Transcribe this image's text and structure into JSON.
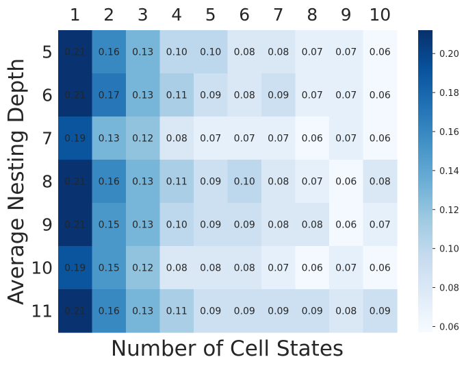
{
  "chart_data": {
    "type": "heatmap",
    "title": "",
    "xlabel": "Number of Cell States",
    "ylabel": "Average Nesting Depth",
    "x_categories": [
      "1",
      "2",
      "3",
      "4",
      "5",
      "6",
      "7",
      "8",
      "9",
      "10"
    ],
    "y_categories": [
      "5",
      "6",
      "7",
      "8",
      "9",
      "10",
      "11"
    ],
    "values": [
      [
        0.21,
        0.16,
        0.13,
        0.1,
        0.1,
        0.08,
        0.08,
        0.07,
        0.07,
        0.06
      ],
      [
        0.21,
        0.17,
        0.13,
        0.11,
        0.09,
        0.08,
        0.09,
        0.07,
        0.07,
        0.06
      ],
      [
        0.19,
        0.13,
        0.12,
        0.08,
        0.07,
        0.07,
        0.07,
        0.06,
        0.07,
        0.06
      ],
      [
        0.21,
        0.16,
        0.13,
        0.11,
        0.09,
        0.1,
        0.08,
        0.07,
        0.06,
        0.08
      ],
      [
        0.21,
        0.15,
        0.13,
        0.1,
        0.09,
        0.09,
        0.08,
        0.08,
        0.06,
        0.07
      ],
      [
        0.19,
        0.15,
        0.12,
        0.08,
        0.08,
        0.08,
        0.07,
        0.06,
        0.07,
        0.06
      ],
      [
        0.21,
        0.16,
        0.13,
        0.11,
        0.09,
        0.09,
        0.09,
        0.09,
        0.08,
        0.09
      ]
    ],
    "value_labels": [
      [
        "0.21",
        "0.16",
        "0.13",
        "0.10",
        "0.10",
        "0.08",
        "0.08",
        "0.07",
        "0.07",
        "0.06"
      ],
      [
        "0.21",
        "0.17",
        "0.13",
        "0.11",
        "0.09",
        "0.08",
        "0.09",
        "0.07",
        "0.07",
        "0.06"
      ],
      [
        "0.19",
        "0.13",
        "0.12",
        "0.08",
        "0.07",
        "0.07",
        "0.07",
        "0.06",
        "0.07",
        "0.06"
      ],
      [
        "0.21",
        "0.16",
        "0.13",
        "0.11",
        "0.09",
        "0.10",
        "0.08",
        "0.07",
        "0.06",
        "0.08"
      ],
      [
        "0.21",
        "0.15",
        "0.13",
        "0.10",
        "0.09",
        "0.09",
        "0.08",
        "0.08",
        "0.06",
        "0.07"
      ],
      [
        "0.19",
        "0.15",
        "0.12",
        "0.08",
        "0.08",
        "0.08",
        "0.07",
        "0.06",
        "0.07",
        "0.06"
      ],
      [
        "0.21",
        "0.16",
        "0.13",
        "0.11",
        "0.09",
        "0.09",
        "0.09",
        "0.09",
        "0.08",
        "0.09"
      ]
    ],
    "x_axis_position": "top",
    "colormap": "Blues",
    "color_range": [
      0.057,
      0.212
    ],
    "colorbar": {
      "position": "right",
      "ticks": [
        0.06,
        0.08,
        0.1,
        0.12,
        0.14,
        0.16,
        0.18,
        0.2
      ],
      "tick_labels": [
        "0.06",
        "0.08",
        "0.10",
        "0.12",
        "0.14",
        "0.16",
        "0.18",
        "0.20"
      ]
    },
    "colors": {
      "low": "#f7fbff",
      "high": "#08306b",
      "annotation_text": "#262626",
      "axis_text": "#262626"
    },
    "grid": false
  }
}
